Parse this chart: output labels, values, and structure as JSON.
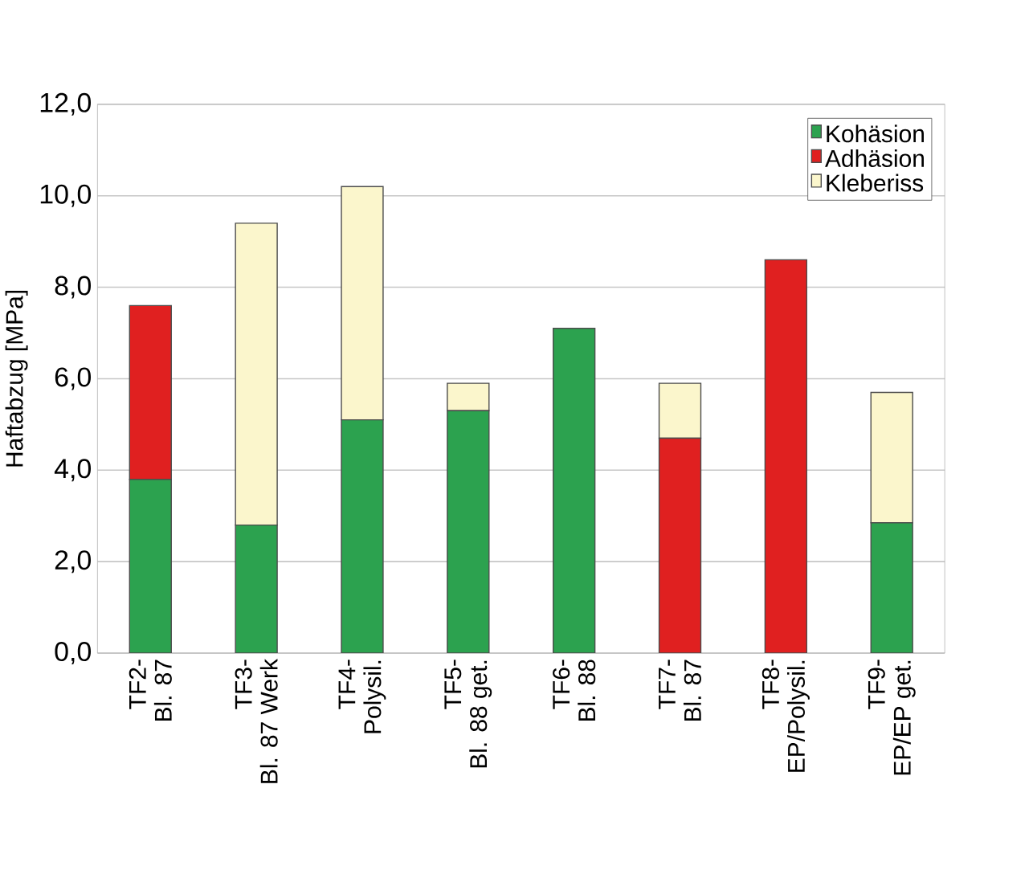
{
  "chart_data": {
    "type": "bar",
    "stacked": true,
    "ylabel": "Haftabzug [MPa]",
    "categories": [
      "TF2-\nBl. 87",
      "TF3-\nBl. 87 Werk",
      "TF4-\nPolysil.",
      "TF5-\nBl. 88 get.",
      "TF6-\nBl. 88",
      "TF7-\nBl. 87",
      "TF8-\nEP/Polysil.",
      "TF9-\nEP/EP get."
    ],
    "series": [
      {
        "name": "Kohäsion",
        "color": "#2ca24f",
        "values": [
          3.8,
          2.8,
          5.1,
          5.3,
          7.1,
          0,
          0,
          2.85
        ]
      },
      {
        "name": "Adhäsion",
        "color": "#e02020",
        "values": [
          3.8,
          0,
          0,
          0,
          0,
          4.7,
          8.6,
          0
        ]
      },
      {
        "name": "Kleberiss",
        "color": "#fbf6cc",
        "values": [
          0,
          6.6,
          5.1,
          0.6,
          0,
          1.2,
          0,
          2.85
        ]
      }
    ],
    "ylim": [
      0,
      12
    ],
    "yticks": [
      {
        "value": 0,
        "label": "0,0"
      },
      {
        "value": 2,
        "label": "2,0"
      },
      {
        "value": 4,
        "label": "4,0"
      },
      {
        "value": 6,
        "label": "6,0"
      },
      {
        "value": 8,
        "label": "8,0"
      },
      {
        "value": 10,
        "label": "10,0"
      },
      {
        "value": 12,
        "label": "12,0"
      }
    ],
    "grid": "y",
    "legend": "top right"
  }
}
